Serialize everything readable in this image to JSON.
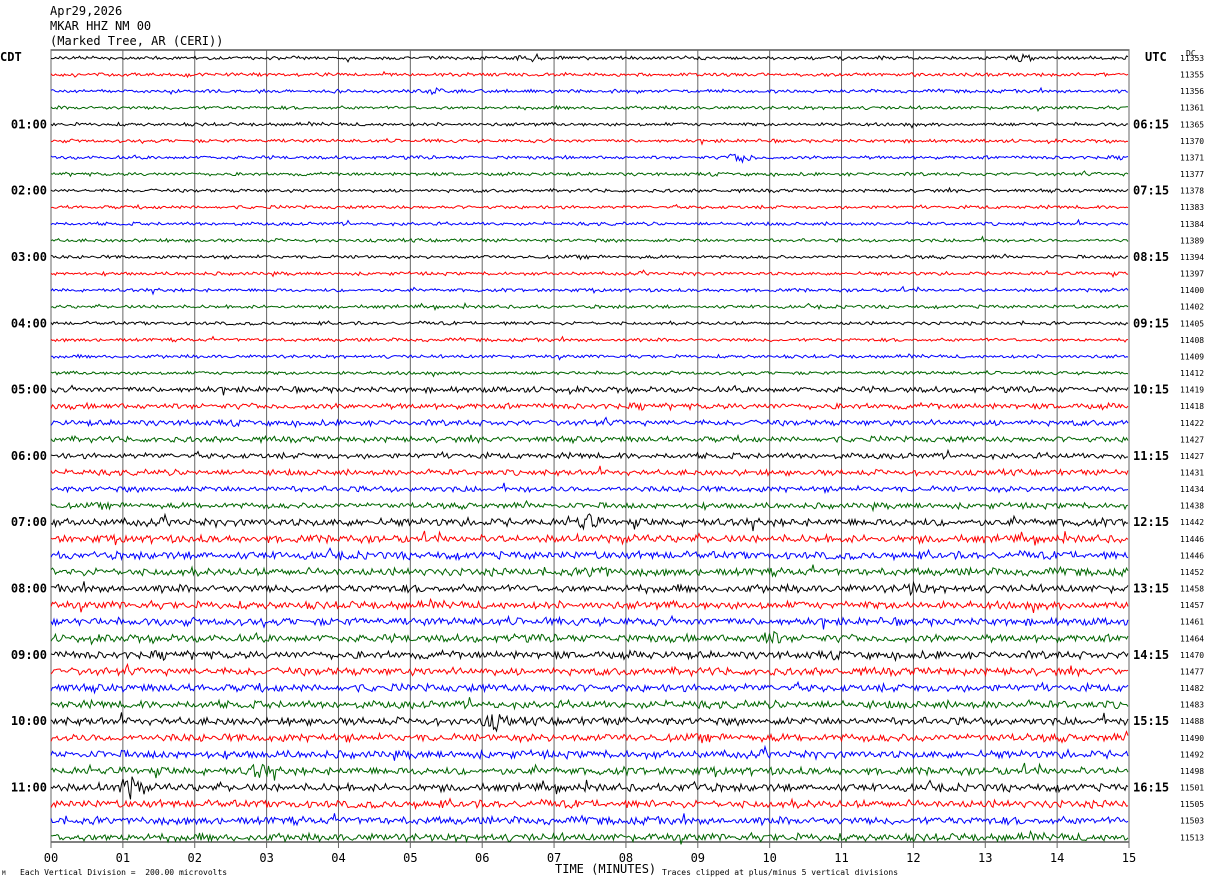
{
  "header": {
    "date": "Apr29,2026",
    "station": "MKAR HHZ NM 00",
    "location": "(Marked Tree, AR (CERI))"
  },
  "left_tz": "CDT",
  "right_tz": "UTC",
  "dc_label": "DC",
  "footer": {
    "scale": "Each Vertical Division =  200.00 microvolts",
    "clip": "Traces clipped at plus/minus 5 vertical divisions",
    "xlabel": "TIME (MINUTES)",
    "corner_mark": "M"
  },
  "chart_data": {
    "type": "line",
    "title": "MKAR HHZ NM 00",
    "xlabel": "TIME (MINUTES)",
    "xlim": [
      0,
      15
    ],
    "x_ticks": [
      "00",
      "01",
      "02",
      "03",
      "04",
      "05",
      "06",
      "07",
      "08",
      "09",
      "10",
      "11",
      "12",
      "13",
      "14",
      "15"
    ],
    "trace_colors": [
      "#000000",
      "#ff0000",
      "#0000ff",
      "#006600"
    ],
    "row_count": 48,
    "left_hour_labels": [
      "01:00",
      "02:00",
      "03:00",
      "04:00",
      "05:00",
      "06:00",
      "07:00",
      "08:00",
      "09:00",
      "10:00",
      "11:00"
    ],
    "right_hour_labels": [
      "06:15",
      "07:15",
      "08:15",
      "09:15",
      "10:15",
      "11:15",
      "12:15",
      "13:15",
      "14:15",
      "15:15",
      "16:15"
    ],
    "dc_offsets": [
      11353,
      11355,
      11356,
      11361,
      11365,
      11370,
      11371,
      11377,
      11378,
      11383,
      11384,
      11389,
      11394,
      11397,
      11400,
      11402,
      11405,
      11408,
      11409,
      11412,
      11419,
      11418,
      11422,
      11427,
      11427,
      11431,
      11434,
      11438,
      11442,
      11446,
      11446,
      11452,
      11458,
      11457,
      11461,
      11464,
      11470,
      11477,
      11482,
      11483,
      11488,
      11490,
      11492,
      11498,
      11501,
      11505,
      11503,
      11513
    ],
    "noise_level": [
      1,
      1,
      1,
      1,
      1,
      1,
      1,
      1,
      1,
      1,
      1,
      1,
      1,
      1,
      1,
      1,
      1,
      1,
      1,
      1,
      2,
      2,
      2,
      2,
      2,
      2,
      2,
      2,
      3,
      3,
      3,
      3,
      3,
      3,
      3,
      3,
      3,
      3,
      3,
      3,
      3,
      3,
      3,
      3,
      3,
      3,
      3,
      3
    ],
    "events": [
      {
        "row": 0,
        "minute": 6.7,
        "amp": 3
      },
      {
        "row": 0,
        "minute": 13.5,
        "amp": 3
      },
      {
        "row": 2,
        "minute": 5.4,
        "amp": 3
      },
      {
        "row": 6,
        "minute": 9.6,
        "amp": 4
      },
      {
        "row": 28,
        "minute": 7.45,
        "amp": 6
      },
      {
        "row": 31,
        "minute": 7.6,
        "amp": 4
      },
      {
        "row": 32,
        "minute": 12.0,
        "amp": 4
      },
      {
        "row": 35,
        "minute": 10.0,
        "amp": 5
      },
      {
        "row": 40,
        "minute": 6.2,
        "amp": 6
      },
      {
        "row": 43,
        "minute": 2.9,
        "amp": 5
      },
      {
        "row": 44,
        "minute": 1.1,
        "amp": 9
      },
      {
        "row": 44,
        "minute": 8.9,
        "amp": 3
      }
    ]
  }
}
